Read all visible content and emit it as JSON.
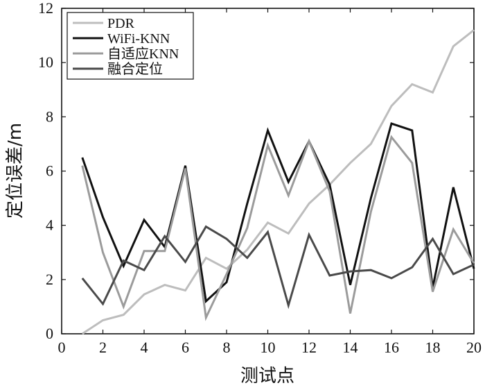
{
  "chart_data": {
    "type": "line",
    "title": "",
    "xlabel": "测试点",
    "ylabel": "定位误差/m",
    "xlim": [
      0,
      20
    ],
    "ylim": [
      0,
      12
    ],
    "xticks": [
      0,
      2,
      4,
      6,
      8,
      10,
      12,
      14,
      16,
      18,
      20
    ],
    "yticks": [
      0,
      2,
      4,
      6,
      8,
      10,
      12
    ],
    "grid": false,
    "legend_position": "top-left",
    "x": [
      1,
      2,
      3,
      4,
      5,
      6,
      7,
      8,
      9,
      10,
      11,
      12,
      13,
      14,
      15,
      16,
      17,
      18,
      19,
      20
    ],
    "series": [
      {
        "name": "PDR",
        "color": "#bdbdbd",
        "values": [
          0.0,
          0.5,
          0.7,
          1.45,
          1.8,
          1.6,
          2.8,
          2.4,
          3.1,
          4.1,
          3.7,
          4.8,
          5.5,
          6.3,
          7.0,
          8.4,
          9.2,
          8.9,
          10.6,
          11.2
        ]
      },
      {
        "name": "WiFi-KNN",
        "color": "#111111",
        "values": [
          6.5,
          4.3,
          2.5,
          4.2,
          3.2,
          6.2,
          1.2,
          1.9,
          4.8,
          7.5,
          5.6,
          7.1,
          5.5,
          1.8,
          5.0,
          7.75,
          7.5,
          1.7,
          5.4,
          2.4
        ]
      },
      {
        "name": "自适应KNN",
        "color": "#9b9b9b",
        "values": [
          6.2,
          3.0,
          1.0,
          3.05,
          3.05,
          6.1,
          0.6,
          2.2,
          3.9,
          6.95,
          5.1,
          7.1,
          5.25,
          0.75,
          4.5,
          7.25,
          6.3,
          1.55,
          3.85,
          2.6
        ]
      },
      {
        "name": "融合定位",
        "color": "#4a4a4a",
        "values": [
          2.05,
          1.1,
          2.7,
          2.35,
          3.6,
          2.65,
          3.95,
          3.5,
          2.8,
          3.75,
          1.05,
          3.65,
          2.15,
          2.3,
          2.35,
          2.05,
          2.45,
          3.5,
          2.2,
          2.55
        ]
      }
    ]
  }
}
